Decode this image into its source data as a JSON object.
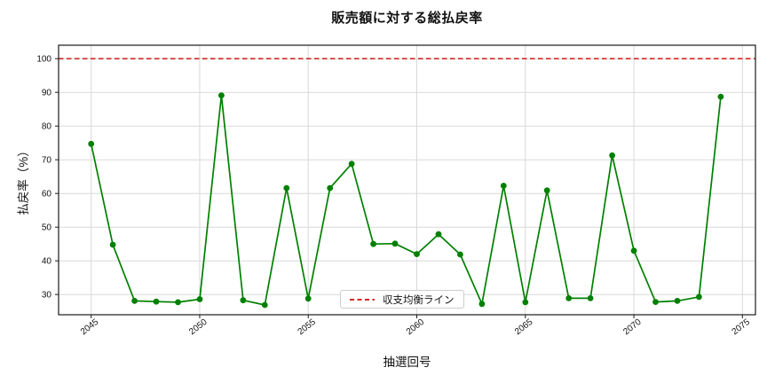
{
  "title": "販売額に対する総払戻率",
  "legend": {
    "break_even_label": "収支均衡ライン"
  },
  "colors": {
    "series_green": "#008000",
    "reference_red": "#d62728",
    "grid": "#d9d9d9",
    "spine": "#1a1a1a",
    "text": "#111111"
  },
  "chart_data": {
    "type": "line",
    "title": "販売額に対する総払戻率",
    "xlabel": "抽選回号",
    "ylabel": "払戻率（%）",
    "x": [
      2045,
      2046,
      2047,
      2048,
      2049,
      2050,
      2051,
      2052,
      2053,
      2054,
      2055,
      2056,
      2057,
      2058,
      2059,
      2060,
      2061,
      2062,
      2063,
      2064,
      2065,
      2066,
      2067,
      2068,
      2069,
      2070,
      2071,
      2072,
      2073,
      2074
    ],
    "series": [
      {
        "name": "払戻率",
        "color": "#008000",
        "values": [
          74.7,
          44.8,
          28.1,
          27.9,
          27.7,
          28.6,
          89.1,
          28.3,
          26.9,
          61.6,
          28.8,
          61.6,
          68.8,
          45.0,
          45.1,
          42.0,
          47.9,
          41.9,
          27.2,
          62.3,
          27.7,
          60.9,
          28.9,
          28.9,
          71.3,
          43.0,
          27.8,
          28.1,
          29.3,
          88.7
        ]
      }
    ],
    "reference_line": {
      "label": "収支均衡ライン",
      "value": 100,
      "color": "#d62728",
      "style": "dashed"
    },
    "xlim": [
      2043.5,
      2075.6
    ],
    "ylim": [
      24,
      104
    ],
    "xticks": [
      2045,
      2050,
      2055,
      2060,
      2065,
      2070,
      2075
    ],
    "yticks": [
      30,
      40,
      50,
      60,
      70,
      80,
      90,
      100
    ],
    "grid": true,
    "legend_position": "lower-center"
  }
}
